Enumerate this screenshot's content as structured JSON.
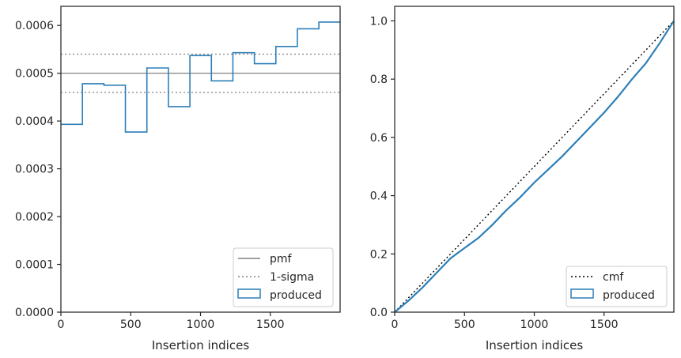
{
  "chart_data": [
    {
      "type": "line",
      "step": true,
      "xlabel": "Insertion indices",
      "ylabel": "",
      "title": "",
      "xlim": [
        0,
        2000
      ],
      "ylim": [
        0,
        0.00064
      ],
      "xticks": [
        0,
        500,
        1000,
        1500
      ],
      "xtick_labels": [
        "0",
        "500",
        "1000",
        "1500"
      ],
      "yticks": [
        0,
        0.0001,
        0.0002,
        0.0003,
        0.0004,
        0.0005,
        0.0006
      ],
      "ytick_labels": [
        "0.0000",
        "0.0001",
        "0.0002",
        "0.0003",
        "0.0004",
        "0.0005",
        "0.0006"
      ],
      "grid": false,
      "legend": "bottom-right",
      "pmf": 0.0005,
      "sigma_upper": 0.00054,
      "sigma_lower": 0.00046,
      "bin_edges": [
        0,
        154,
        308,
        462,
        616,
        770,
        924,
        1078,
        1232,
        1386,
        1540,
        1694,
        1848,
        2000
      ],
      "values": [
        0.000393,
        0.000478,
        0.000475,
        0.000377,
        0.000511,
        0.00043,
        0.000537,
        0.000484,
        0.000543,
        0.00052,
        0.000556,
        0.000593,
        0.000607
      ],
      "legend_entries": [
        "pmf",
        "1-sigma",
        "produced"
      ],
      "colors": {
        "pmf": "#808080",
        "sigma": "#808080",
        "produced": "#2c7fb8"
      }
    },
    {
      "type": "line",
      "xlabel": "Insertion indices",
      "ylabel": "",
      "title": "",
      "xlim": [
        0,
        2000
      ],
      "ylim": [
        0,
        1.05
      ],
      "xticks": [
        0,
        500,
        1000,
        1500
      ],
      "xtick_labels": [
        "0",
        "500",
        "1000",
        "1500"
      ],
      "yticks": [
        0,
        0.2,
        0.4,
        0.6,
        0.8,
        1.0
      ],
      "ytick_labels": [
        "0.0",
        "0.2",
        "0.4",
        "0.6",
        "0.8",
        "1.0"
      ],
      "grid": false,
      "legend": "bottom-right",
      "series": [
        {
          "name": "cmf",
          "style": "dotted",
          "x": [
            0,
            2000
          ],
          "y": [
            0,
            1.0
          ]
        },
        {
          "name": "produced",
          "style": "solid",
          "x": [
            0,
            100,
            200,
            300,
            400,
            500,
            600,
            700,
            800,
            900,
            1000,
            1100,
            1200,
            1300,
            1400,
            1500,
            1600,
            1700,
            1800,
            1900,
            2000
          ],
          "y": [
            0,
            0.04,
            0.085,
            0.135,
            0.185,
            0.22,
            0.255,
            0.3,
            0.35,
            0.395,
            0.445,
            0.49,
            0.535,
            0.585,
            0.635,
            0.685,
            0.74,
            0.8,
            0.855,
            0.925,
            1.0
          ]
        }
      ],
      "legend_entries": [
        "cmf",
        "produced"
      ],
      "colors": {
        "cmf": "#000000",
        "produced": "#2c7fb8"
      }
    }
  ]
}
